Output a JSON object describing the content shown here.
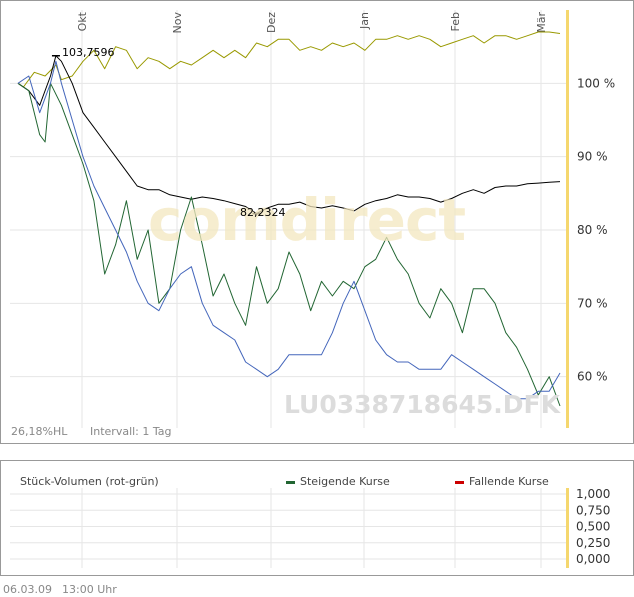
{
  "chart_data": [
    {
      "type": "line",
      "x_axis": {
        "ticks": [
          "Okt",
          "Nov",
          "Dez",
          "Jan",
          "Feb",
          "Mär"
        ]
      },
      "y_axis": {
        "ticks": [
          "60 %",
          "70 %",
          "80 %",
          "90 %",
          "100 %"
        ],
        "tick_values": [
          60,
          70,
          80,
          90,
          100
        ],
        "ylim": [
          53,
          110
        ],
        "position": "right"
      },
      "grid": true,
      "watermark": "comdirect",
      "instrument_id": "LU0338718645.DFK",
      "annotations": {
        "max_label": "103,7596",
        "max_value": 103.76,
        "min_label": "82,2324",
        "min_value": 82.23
      },
      "footer": {
        "stat": "26,18%HL",
        "interval": "Intervall: 1 Tag"
      },
      "series": [
        {
          "color": "#999900",
          "x": [
            0,
            0.01,
            0.03,
            0.05,
            0.07,
            0.08,
            0.1,
            0.12,
            0.14,
            0.16,
            0.18,
            0.2,
            0.22,
            0.24,
            0.26,
            0.28,
            0.3,
            0.32,
            0.34,
            0.36,
            0.38,
            0.4,
            0.42,
            0.44,
            0.46,
            0.48,
            0.5,
            0.52,
            0.54,
            0.56,
            0.58,
            0.6,
            0.62,
            0.64,
            0.66,
            0.68,
            0.7,
            0.72,
            0.74,
            0.76,
            0.78,
            0.8,
            0.82,
            0.84,
            0.86,
            0.88,
            0.9,
            0.92,
            0.94,
            0.96,
            0.98,
            1
          ],
          "y": [
            100,
            99.5,
            101.5,
            101,
            102.5,
            100.5,
            101,
            103,
            104.5,
            102,
            105,
            104.5,
            102,
            103.5,
            103,
            102,
            103,
            102.5,
            103.5,
            104.5,
            103.5,
            104.5,
            103.5,
            105.5,
            105,
            106,
            106,
            104.5,
            105,
            104.5,
            105.5,
            105,
            105.5,
            104.5,
            106,
            106,
            106.5,
            106,
            106.5,
            106,
            105,
            105.5,
            106,
            106.5,
            105.5,
            106.5,
            106.5,
            106,
            106.5,
            107,
            107,
            106.8
          ]
        },
        {
          "color": "#000000",
          "x": [
            0,
            0.02,
            0.04,
            0.06,
            0.07,
            0.08,
            0.1,
            0.12,
            0.14,
            0.16,
            0.18,
            0.2,
            0.22,
            0.24,
            0.26,
            0.28,
            0.3,
            0.32,
            0.34,
            0.36,
            0.38,
            0.4,
            0.42,
            0.44,
            0.46,
            0.48,
            0.5,
            0.52,
            0.54,
            0.56,
            0.58,
            0.6,
            0.62,
            0.64,
            0.66,
            0.68,
            0.7,
            0.72,
            0.74,
            0.76,
            0.78,
            0.8,
            0.82,
            0.84,
            0.86,
            0.88,
            0.9,
            0.92,
            0.94,
            0.96,
            0.98,
            1
          ],
          "y": [
            100,
            99,
            97,
            101,
            103.76,
            103,
            100,
            96,
            94,
            92,
            90,
            88,
            86,
            85.5,
            85.5,
            84.8,
            84.5,
            84.2,
            84.5,
            84.3,
            84,
            83.6,
            83.2,
            82.23,
            83,
            83.5,
            83.5,
            83.8,
            83.2,
            83,
            83.3,
            83,
            82.6,
            83.5,
            84,
            84.3,
            84.8,
            84.5,
            84.5,
            84.3,
            83.8,
            84.3,
            85,
            85.5,
            85,
            85.8,
            86,
            86,
            86.3,
            86.4,
            86.5,
            86.6
          ]
        },
        {
          "color": "#226633",
          "x": [
            0,
            0.02,
            0.04,
            0.05,
            0.06,
            0.08,
            0.1,
            0.12,
            0.14,
            0.16,
            0.18,
            0.2,
            0.22,
            0.24,
            0.26,
            0.28,
            0.3,
            0.32,
            0.34,
            0.36,
            0.38,
            0.4,
            0.42,
            0.44,
            0.46,
            0.48,
            0.5,
            0.52,
            0.54,
            0.56,
            0.58,
            0.6,
            0.62,
            0.64,
            0.66,
            0.68,
            0.7,
            0.72,
            0.74,
            0.76,
            0.78,
            0.8,
            0.82,
            0.84,
            0.86,
            0.88,
            0.9,
            0.92,
            0.94,
            0.96,
            0.98,
            1
          ],
          "y": [
            100,
            99,
            93,
            92,
            100,
            97,
            93,
            89,
            84,
            74,
            78,
            84,
            76,
            80,
            70,
            72,
            80,
            84.5,
            78,
            71,
            74,
            70,
            67,
            75,
            70,
            72,
            77,
            74,
            69,
            73,
            71,
            73,
            72,
            75,
            76,
            79,
            76,
            74,
            70,
            68,
            72,
            70,
            66,
            72,
            72,
            70,
            66,
            64,
            61,
            57.5,
            60,
            56
          ]
        },
        {
          "color": "#4466bb",
          "x": [
            0,
            0.02,
            0.04,
            0.06,
            0.07,
            0.08,
            0.1,
            0.12,
            0.14,
            0.16,
            0.18,
            0.2,
            0.22,
            0.24,
            0.26,
            0.28,
            0.3,
            0.32,
            0.34,
            0.36,
            0.38,
            0.4,
            0.42,
            0.44,
            0.46,
            0.48,
            0.5,
            0.52,
            0.54,
            0.56,
            0.58,
            0.6,
            0.62,
            0.64,
            0.66,
            0.68,
            0.7,
            0.72,
            0.74,
            0.76,
            0.78,
            0.8,
            0.82,
            0.84,
            0.86,
            0.88,
            0.9,
            0.92,
            0.94,
            0.96,
            0.98,
            1
          ],
          "y": [
            100,
            101,
            96,
            100,
            103,
            100,
            95,
            90,
            86,
            83,
            80,
            77,
            73,
            70,
            69,
            72,
            74,
            75,
            70,
            67,
            66,
            65,
            62,
            61,
            60,
            61,
            63,
            63,
            63,
            63,
            66,
            70,
            73,
            69,
            65,
            63,
            62,
            62,
            61,
            61,
            61,
            63,
            62,
            61,
            60,
            59,
            58,
            57,
            57,
            58,
            58,
            60.5
          ]
        }
      ]
    },
    {
      "type": "bar",
      "title": "Stück-Volumen (rot-grün)",
      "legend": [
        {
          "label": "Steigende Kurse",
          "color": "#226633"
        },
        {
          "label": "Fallende Kurse",
          "color": "#cc0000"
        }
      ],
      "y_axis": {
        "ticks": [
          "1,000",
          "0,750",
          "0,500",
          "0,250",
          "0,000"
        ],
        "tick_values": [
          1,
          0.75,
          0.5,
          0.25,
          0
        ],
        "ylim": [
          0,
          1
        ],
        "position": "right"
      },
      "values": []
    }
  ],
  "footer": {
    "date": "06.03.09",
    "time": "13:00 Uhr"
  }
}
